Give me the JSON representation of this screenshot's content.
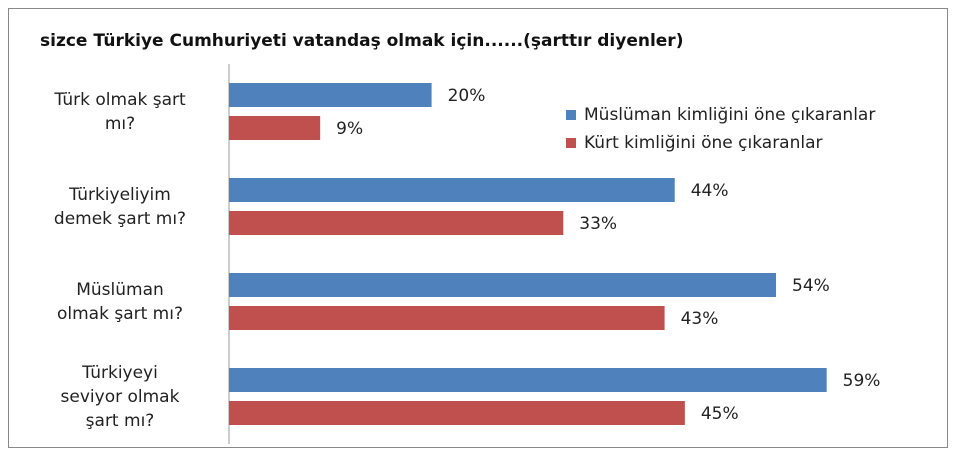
{
  "chart_data": {
    "type": "bar",
    "orientation": "horizontal",
    "title": "sizce Türkiye Cumhuriyeti vatandaş olmak için......(şarttır diyenler)",
    "categories": [
      "Türk olmak şart\nmı?",
      "Türkiyeliyim\ndemek şart mı?",
      "Müslüman\nolmak şart mı?",
      "Türkiyeyi\nseviyor olmak\nşart mı?"
    ],
    "series": [
      {
        "name": "Müslüman kimliğini öne çıkaranlar",
        "color": "#4f81bd",
        "values": [
          20,
          44,
          54,
          59
        ],
        "value_labels": [
          "20%",
          "44%",
          "54%",
          "59%"
        ]
      },
      {
        "name": "Kürt kimliğini öne çıkaranlar",
        "color": "#c0504d",
        "values": [
          9,
          33,
          43,
          45
        ],
        "value_labels": [
          "9%",
          "33%",
          "43%",
          "45%"
        ]
      }
    ],
    "legend": "right"
  }
}
